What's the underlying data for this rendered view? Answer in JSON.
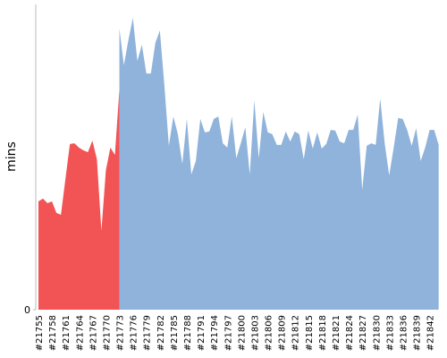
{
  "chart_data": {
    "type": "area",
    "y_label": "mins",
    "categories": [
      "#21755",
      null,
      null,
      "#21758",
      null,
      null,
      "#21761",
      null,
      null,
      "#21764",
      null,
      null,
      "#21767",
      null,
      null,
      "#21770",
      null,
      null,
      "#21773",
      null,
      null,
      "#21776",
      null,
      null,
      "#21779",
      null,
      null,
      "#21782",
      null,
      null,
      "#21785",
      null,
      null,
      "#21788",
      null,
      null,
      "#21791",
      null,
      null,
      "#21794",
      null,
      null,
      "#21797",
      null,
      null,
      "#21800",
      null,
      null,
      "#21803",
      null,
      null,
      "#21806",
      null,
      null,
      "#21809",
      null,
      null,
      "#21812",
      null,
      null,
      "#21815",
      null,
      null,
      "#21818",
      null,
      null,
      "#21821",
      null,
      null,
      "#21824",
      null,
      null,
      "#21827",
      null,
      null,
      "#21830",
      null,
      null,
      "#21833",
      null,
      null,
      "#21836",
      null,
      null,
      "#21839",
      null,
      null,
      "#21842",
      null,
      null
    ],
    "series": [
      {
        "color": "#f25355",
        "values": [
          35.5,
          36.4,
          34.9,
          35.5,
          31.7,
          31.1,
          42.8,
          54.3,
          54.5,
          53.1,
          52.2,
          51.6,
          55.4,
          49.3,
          25.8,
          45.7,
          53.1,
          50.7,
          72.1,
          null,
          null,
          null,
          null,
          null,
          null,
          null,
          null,
          null,
          null,
          null,
          null,
          null,
          null,
          null,
          null,
          null,
          null,
          null,
          null,
          null,
          null,
          null,
          null,
          null,
          null,
          null,
          null,
          null,
          null,
          null,
          null,
          null,
          null,
          null,
          null,
          null,
          null,
          null,
          null,
          null,
          null,
          null,
          null,
          null,
          null,
          null,
          null,
          null,
          null,
          null,
          null,
          null,
          null,
          null,
          null,
          null,
          null,
          null,
          null,
          null,
          null,
          null,
          null,
          null,
          null,
          null,
          null,
          null,
          null,
          null
        ]
      },
      {
        "color": "#8fb3db",
        "values": [
          null,
          null,
          null,
          null,
          null,
          null,
          null,
          null,
          null,
          null,
          null,
          null,
          null,
          null,
          null,
          null,
          null,
          null,
          92.1,
          80.1,
          88.3,
          95.6,
          81.5,
          86.8,
          77.4,
          77.4,
          87.4,
          91.5,
          73.6,
          53.7,
          63.3,
          57.5,
          47.8,
          62.5,
          44.3,
          48.7,
          62.5,
          58.1,
          58.4,
          62.5,
          63.3,
          54.5,
          53.1,
          63.3,
          49.6,
          54.5,
          59.8,
          44.3,
          68.6,
          49.6,
          64.8,
          58.1,
          57.5,
          54.0,
          54.0,
          58.4,
          55.1,
          58.4,
          57.5,
          49.3,
          58.7,
          52.8,
          58.1,
          52.8,
          54.3,
          58.9,
          58.7,
          55.1,
          54.5,
          58.9,
          58.9,
          63.9,
          39.3,
          53.7,
          54.5,
          54.0,
          69.2,
          54.5,
          44.0,
          53.1,
          62.8,
          62.5,
          58.9,
          53.7,
          59.5,
          48.7,
          53.1,
          58.9,
          58.9,
          54.0
        ]
      }
    ],
    "ylim": [
      0,
      100
    ],
    "yticks": [
      0
    ]
  }
}
